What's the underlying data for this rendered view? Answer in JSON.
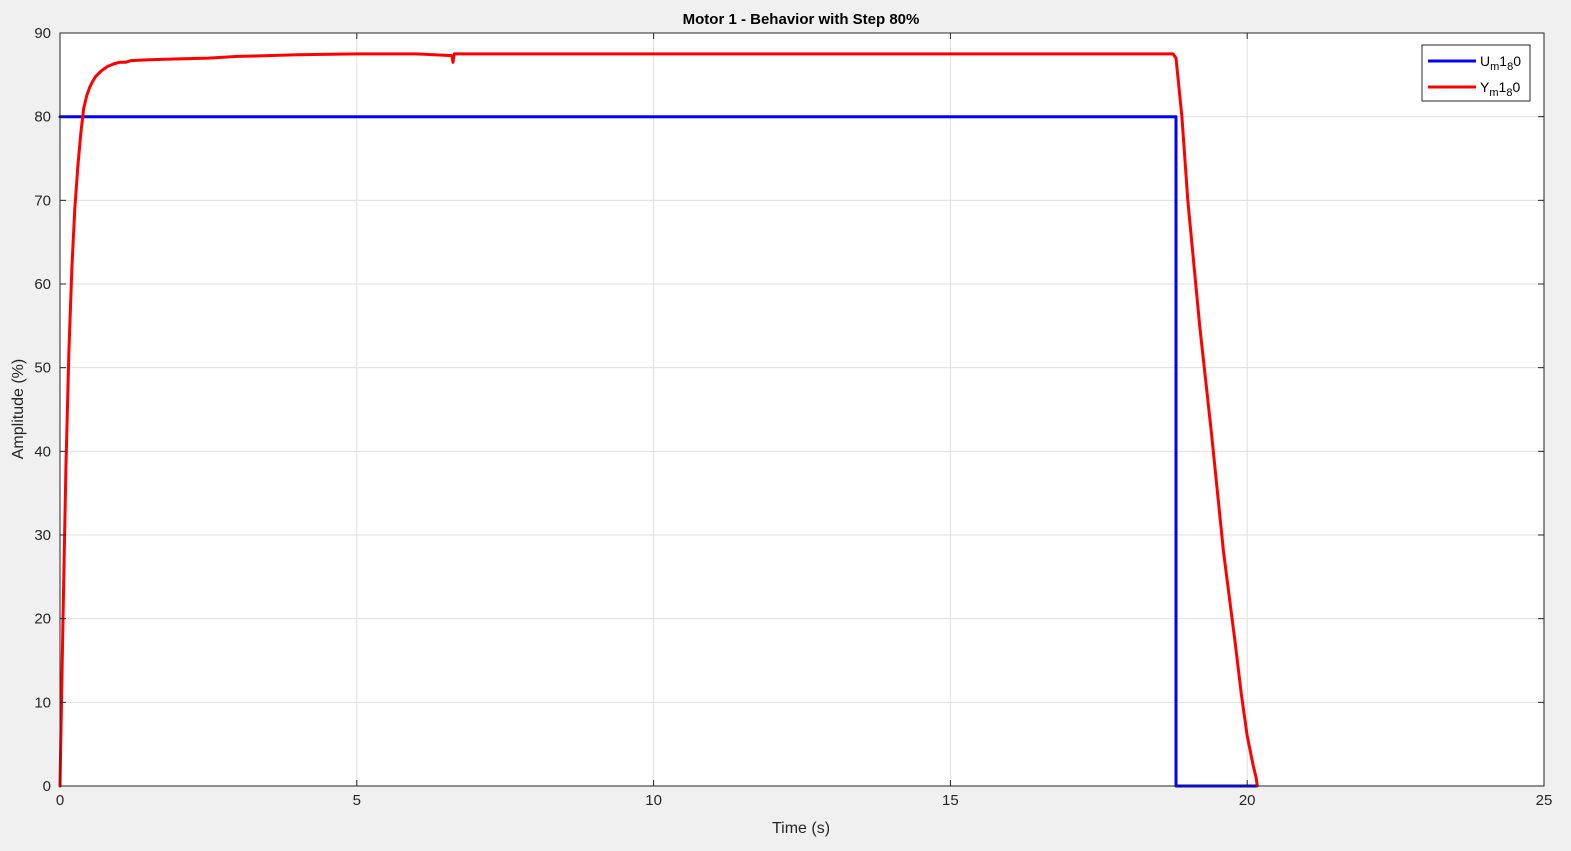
{
  "chart_data": {
    "type": "line",
    "title": "Motor 1 - Behavior with Step 80%",
    "xlabel": "Time (s)",
    "ylabel": "Amplitude (%)",
    "xlim": [
      0,
      25
    ],
    "ylim": [
      0,
      90
    ],
    "xticks": [
      0,
      5,
      10,
      15,
      20,
      25
    ],
    "yticks": [
      0,
      10,
      20,
      30,
      40,
      50,
      60,
      70,
      80,
      90
    ],
    "grid": true,
    "legend_position": "top-right",
    "series": [
      {
        "name": "U_m1_80",
        "legend": {
          "base": "U",
          "sub1": "m",
          "mid": "1",
          "sub2": "8",
          "end": "0"
        },
        "color": "#0000ff",
        "x": [
          0,
          18.8,
          18.8,
          20.15
        ],
        "y": [
          80,
          80,
          0,
          0
        ]
      },
      {
        "name": "Y_m1_80",
        "legend": {
          "base": "Y",
          "sub1": "m",
          "mid": "1",
          "sub2": "8",
          "end": "0"
        },
        "color": "#ff0000",
        "x": [
          0,
          0.05,
          0.1,
          0.15,
          0.2,
          0.25,
          0.3,
          0.35,
          0.4,
          0.45,
          0.5,
          0.55,
          0.6,
          0.7,
          0.8,
          0.9,
          1.0,
          1.1,
          1.2,
          1.5,
          2.0,
          2.5,
          3.0,
          3.5,
          4.0,
          5.0,
          6.0,
          6.6,
          6.62,
          6.64,
          7.0,
          10.0,
          15.0,
          18.75,
          18.8,
          18.9,
          19.0,
          19.2,
          19.4,
          19.6,
          19.8,
          19.9,
          20.0,
          20.1,
          20.15,
          20.17
        ],
        "y": [
          0,
          20,
          38,
          52,
          62,
          69,
          74,
          78,
          81,
          82.5,
          83.5,
          84.2,
          84.8,
          85.5,
          86,
          86.3,
          86.5,
          86.5,
          86.7,
          86.8,
          86.9,
          87,
          87.2,
          87.3,
          87.4,
          87.5,
          87.5,
          87.3,
          86.5,
          87.5,
          87.5,
          87.5,
          87.5,
          87.5,
          87,
          80,
          70,
          55,
          42,
          28,
          17,
          11,
          6,
          2.5,
          1,
          0
        ]
      }
    ]
  }
}
